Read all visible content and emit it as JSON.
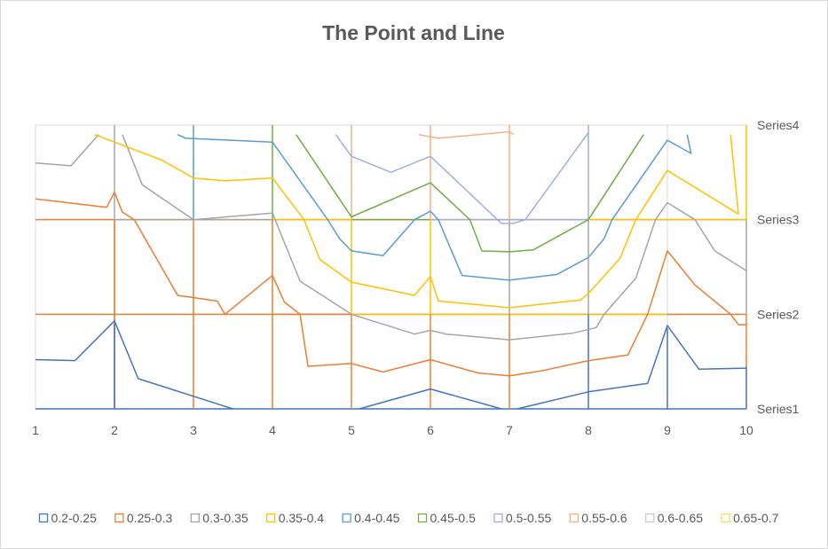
{
  "chart_data": {
    "type": "contour",
    "title": "The Point and Line",
    "x_categories": [
      "1",
      "2",
      "3",
      "4",
      "5",
      "6",
      "7",
      "8",
      "9",
      "10"
    ],
    "y_categories": [
      "Series1",
      "Series2",
      "Series3",
      "Series4"
    ],
    "grid": true,
    "legend_position": "bottom",
    "bands": [
      {
        "label": "0.2-0.25",
        "color": "#4472C4"
      },
      {
        "label": "0.25-0.3",
        "color": "#ED7D31"
      },
      {
        "label": "0.3-0.35",
        "color": "#A5A5A5"
      },
      {
        "label": "0.35-0.4",
        "color": "#FFC000"
      },
      {
        "label": "0.4-0.45",
        "color": "#5B9BD5"
      },
      {
        "label": "0.45-0.5",
        "color": "#70AD47"
      },
      {
        "label": "0.5-0.55",
        "color": "#9DB1E0"
      },
      {
        "label": "0.55-0.6",
        "color": "#F4B183"
      },
      {
        "label": "0.6-0.65",
        "color": "#C9C9C9"
      },
      {
        "label": "0.65-0.7",
        "color": "#FFD966"
      }
    ],
    "contour_lines": [
      {
        "band": 0,
        "points": [
          [
            1,
            1.52
          ],
          [
            1.5,
            1.51
          ],
          [
            2,
            1.93
          ],
          [
            2.3,
            1.32
          ],
          [
            3.5,
            1.0
          ]
        ]
      },
      {
        "band": 0,
        "points": [
          [
            5.1,
            1.0
          ],
          [
            6,
            1.21
          ],
          [
            6.9,
            1.0
          ]
        ]
      },
      {
        "band": 0,
        "points": [
          [
            7.1,
            1.0
          ],
          [
            8,
            1.18
          ],
          [
            8.75,
            1.27
          ],
          [
            9,
            1.88
          ],
          [
            9.4,
            1.42
          ],
          [
            10,
            1.43
          ]
        ]
      },
      {
        "band": 1,
        "points": [
          [
            1,
            3.22
          ],
          [
            1.9,
            3.13
          ],
          [
            2,
            3.29
          ],
          [
            2.1,
            3.08
          ],
          [
            2.25,
            3.0
          ],
          [
            2.8,
            2.2
          ],
          [
            3.3,
            2.14
          ],
          [
            3.4,
            2.0
          ],
          [
            4,
            2.41
          ],
          [
            4.15,
            2.13
          ],
          [
            4.35,
            2.0
          ],
          [
            4.45,
            1.45
          ],
          [
            5,
            1.48
          ],
          [
            5.4,
            1.39
          ],
          [
            6,
            1.52
          ],
          [
            6.6,
            1.38
          ],
          [
            7,
            1.35
          ],
          [
            7.4,
            1.4
          ],
          [
            8,
            1.51
          ],
          [
            8.5,
            1.57
          ],
          [
            8.75,
            2.0
          ],
          [
            9,
            2.67
          ],
          [
            9.35,
            2.31
          ],
          [
            9.8,
            2.0
          ],
          [
            9.9,
            1.89
          ],
          [
            10,
            1.89
          ]
        ]
      },
      {
        "band": 2,
        "points": [
          [
            1,
            3.6
          ],
          [
            1.45,
            3.57
          ],
          [
            1.8,
            3.9
          ]
        ]
      },
      {
        "band": 2,
        "points": [
          [
            2.1,
            3.9
          ],
          [
            2.35,
            3.37
          ],
          [
            3,
            3.0
          ],
          [
            4,
            3.07
          ],
          [
            4.35,
            2.35
          ],
          [
            5,
            2.0
          ],
          [
            5.8,
            1.79
          ],
          [
            6,
            1.83
          ],
          [
            6.2,
            1.79
          ],
          [
            7,
            1.73
          ],
          [
            7.8,
            1.8
          ],
          [
            8.1,
            1.86
          ],
          [
            8.2,
            2.0
          ],
          [
            8.6,
            2.38
          ],
          [
            8.85,
            3.0
          ],
          [
            9,
            3.18
          ],
          [
            9.35,
            3.0
          ],
          [
            9.6,
            2.67
          ],
          [
            10,
            2.46
          ]
        ]
      },
      {
        "band": 3,
        "points": [
          [
            1.75,
            3.9
          ],
          [
            2.6,
            3.63
          ],
          [
            3,
            3.44
          ],
          [
            3.4,
            3.41
          ],
          [
            4,
            3.44
          ],
          [
            4.4,
            3.0
          ],
          [
            4.6,
            2.58
          ],
          [
            5,
            2.34
          ],
          [
            5.8,
            2.2
          ],
          [
            6,
            2.4
          ],
          [
            6.1,
            2.14
          ],
          [
            7,
            2.07
          ],
          [
            7.9,
            2.15
          ],
          [
            8,
            2.22
          ],
          [
            8.4,
            2.59
          ],
          [
            8.6,
            3.0
          ],
          [
            9,
            3.52
          ],
          [
            9.9,
            3.06
          ],
          [
            9.8,
            3.9
          ]
        ]
      },
      {
        "band": 4,
        "points": [
          [
            2.8,
            3.9
          ],
          [
            2.9,
            3.86
          ],
          [
            4,
            3.82
          ],
          [
            4.7,
            3.0
          ],
          [
            4.85,
            2.8
          ],
          [
            5,
            2.67
          ],
          [
            5.4,
            2.62
          ],
          [
            5.8,
            3.0
          ],
          [
            6,
            3.09
          ],
          [
            6.1,
            3.0
          ],
          [
            6.4,
            2.41
          ],
          [
            7,
            2.36
          ],
          [
            7.6,
            2.42
          ],
          [
            8,
            2.6
          ],
          [
            8.2,
            2.8
          ],
          [
            8.3,
            3.0
          ],
          [
            9,
            3.84
          ],
          [
            9.3,
            3.7
          ],
          [
            9.25,
            3.9
          ]
        ]
      },
      {
        "band": 5,
        "points": [
          [
            4.3,
            3.9
          ],
          [
            5,
            3.03
          ],
          [
            6,
            3.39
          ],
          [
            6.5,
            3.0
          ],
          [
            6.65,
            2.67
          ],
          [
            7,
            2.66
          ],
          [
            7.3,
            2.68
          ],
          [
            8,
            3.0
          ],
          [
            8.7,
            3.9
          ]
        ]
      },
      {
        "band": 6,
        "points": [
          [
            4.8,
            3.9
          ],
          [
            5,
            3.67
          ],
          [
            5.5,
            3.5
          ],
          [
            6,
            3.67
          ],
          [
            6.9,
            2.96
          ],
          [
            7.05,
            2.96
          ],
          [
            7.2,
            3.0
          ],
          [
            8,
            3.92
          ]
        ]
      },
      {
        "band": 7,
        "points": [
          [
            5.85,
            3.9
          ],
          [
            6.1,
            3.86
          ],
          [
            7,
            3.93
          ],
          [
            7.05,
            3.9
          ]
        ]
      }
    ]
  }
}
